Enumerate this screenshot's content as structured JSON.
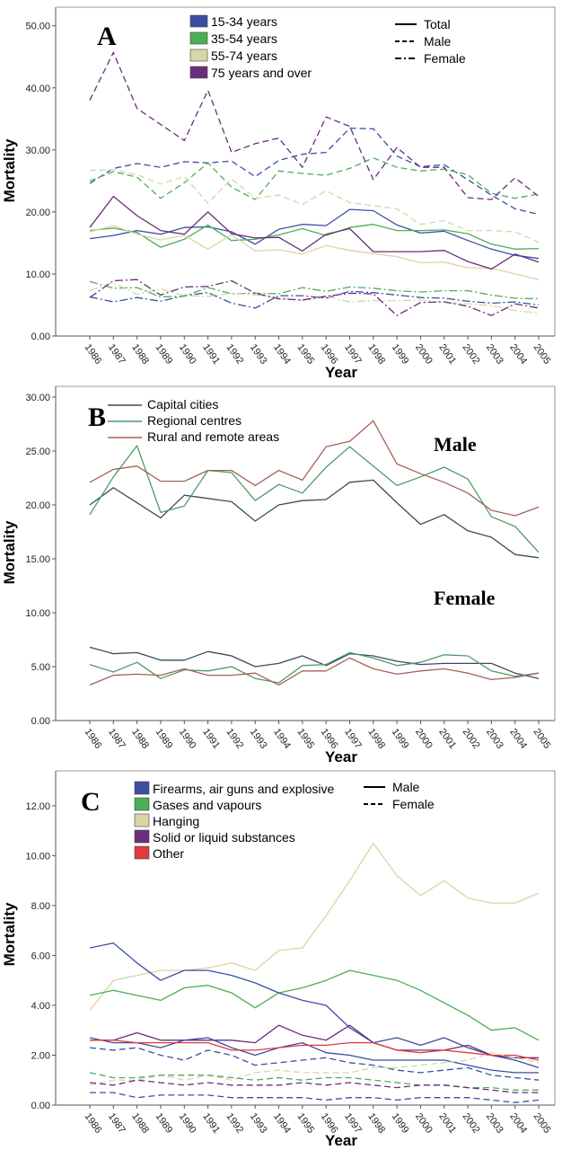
{
  "chart_data": [
    {
      "type": "line",
      "panel": "A",
      "xlabel": "Year",
      "ylabel": "Mortality",
      "x": [
        1986,
        1987,
        1988,
        1989,
        1990,
        1991,
        1992,
        1993,
        1994,
        1995,
        1996,
        1997,
        1998,
        1999,
        2000,
        2001,
        2002,
        2003,
        2004,
        2005
      ],
      "ylim": [
        0,
        53
      ],
      "yticks": [
        "0.00",
        "10.00",
        "20.00",
        "30.00",
        "40.00",
        "50.00"
      ],
      "yticks_values": [
        0,
        10,
        20,
        30,
        40,
        50
      ],
      "legend_colors": [
        {
          "label": "15-34 years",
          "color": "#3b4fa0"
        },
        {
          "label": "35-54 years",
          "color": "#4cae57"
        },
        {
          "label": "55-74 years",
          "color": "#d8d5a7"
        },
        {
          "label": "75 years and over",
          "color": "#6c2d7a"
        }
      ],
      "legend_styles": [
        {
          "label": "Total",
          "dash": "solid"
        },
        {
          "label": "Male",
          "dash": "dashed"
        },
        {
          "label": "Female",
          "dash": "dashdot"
        }
      ],
      "series": [
        {
          "color": "#3b4fa0",
          "dash": "solid",
          "values": [
            15.7,
            16.2,
            17.0,
            16.4,
            17.5,
            17.6,
            16.8,
            14.8,
            17.2,
            18.0,
            17.8,
            20.4,
            20.2,
            17.9,
            16.6,
            16.9,
            15.4,
            14.0,
            13.0,
            12.5
          ]
        },
        {
          "color": "#4cae57",
          "dash": "solid",
          "values": [
            17.0,
            17.4,
            16.7,
            14.3,
            15.6,
            17.9,
            15.4,
            15.6,
            16.3,
            17.3,
            16.2,
            17.5,
            18.0,
            17.0,
            17.0,
            17.1,
            16.5,
            14.8,
            14.0,
            14.1
          ]
        },
        {
          "color": "#d8d5a7",
          "dash": "solid",
          "values": [
            16.8,
            17.8,
            16.4,
            15.5,
            16.2,
            14.0,
            16.3,
            13.7,
            13.9,
            13.2,
            14.6,
            13.8,
            13.3,
            12.8,
            11.8,
            11.9,
            11.0,
            10.9,
            10.0,
            9.1
          ]
        },
        {
          "color": "#6c2d7a",
          "dash": "solid",
          "values": [
            17.5,
            22.5,
            19.4,
            17.0,
            16.4,
            20.0,
            16.5,
            15.8,
            15.9,
            13.7,
            16.4,
            17.3,
            13.6,
            13.6,
            13.6,
            13.8,
            12.0,
            10.8,
            13.2,
            11.9
          ]
        },
        {
          "color": "#3b4fa0",
          "dash": "dashed",
          "values": [
            24.6,
            27.0,
            27.8,
            27.2,
            28.1,
            27.9,
            28.2,
            25.7,
            28.3,
            29.3,
            29.6,
            33.5,
            33.4,
            29.0,
            27.3,
            27.6,
            25.2,
            22.7,
            20.5,
            19.6
          ]
        },
        {
          "color": "#4cae57",
          "dash": "dashed",
          "values": [
            25.0,
            26.5,
            25.6,
            22.2,
            24.7,
            27.9,
            24.0,
            22.0,
            26.6,
            26.2,
            25.9,
            27.0,
            28.7,
            27.2,
            26.6,
            26.9,
            26.0,
            23.0,
            22.2,
            22.9
          ]
        },
        {
          "color": "#d8d5a7",
          "dash": "dashed",
          "values": [
            26.7,
            26.8,
            26.0,
            24.5,
            25.7,
            21.4,
            25.3,
            22.2,
            22.7,
            21.2,
            23.4,
            21.5,
            21.0,
            20.5,
            18.0,
            18.6,
            17.0,
            17.0,
            16.8,
            15.1
          ]
        },
        {
          "color": "#6c2d7a",
          "dash": "dashed",
          "values": [
            38.0,
            45.7,
            36.7,
            34.1,
            31.5,
            39.6,
            29.6,
            31.0,
            31.9,
            27.2,
            35.3,
            33.8,
            25.2,
            30.4,
            27.2,
            27.2,
            22.3,
            22.0,
            25.5,
            22.5
          ]
        },
        {
          "color": "#3b4fa0",
          "dash": "dashdot",
          "values": [
            6.3,
            5.5,
            6.2,
            5.6,
            6.5,
            7.0,
            5.3,
            4.5,
            6.5,
            6.5,
            6.1,
            7.2,
            7.0,
            6.6,
            6.2,
            6.1,
            5.6,
            5.3,
            5.5,
            5.0
          ]
        },
        {
          "color": "#4cae57",
          "dash": "dashdot",
          "values": [
            8.8,
            7.7,
            7.8,
            6.3,
            6.4,
            7.8,
            6.8,
            6.9,
            6.8,
            7.8,
            7.2,
            7.9,
            7.7,
            7.3,
            7.1,
            7.3,
            7.3,
            6.6,
            6.1,
            6.0
          ]
        },
        {
          "color": "#d8d5a7",
          "dash": "dashdot",
          "values": [
            7.3,
            8.6,
            6.7,
            7.6,
            6.5,
            6.4,
            6.9,
            6.6,
            6.2,
            5.7,
            6.4,
            5.5,
            5.7,
            5.7,
            5.8,
            5.4,
            5.2,
            4.9,
            4.1,
            3.7
          ]
        },
        {
          "color": "#6c2d7a",
          "dash": "dashdot",
          "values": [
            6.2,
            8.9,
            9.1,
            6.6,
            7.9,
            8.0,
            8.9,
            6.9,
            6.0,
            5.8,
            6.4,
            6.9,
            6.8,
            3.3,
            5.4,
            5.5,
            4.8,
            3.3,
            5.2,
            4.5
          ]
        }
      ]
    },
    {
      "type": "line",
      "panel": "B",
      "xlabel": "Year",
      "ylabel": "Mortality",
      "x": [
        1986,
        1987,
        1988,
        1989,
        1990,
        1991,
        1992,
        1993,
        1994,
        1995,
        1996,
        1997,
        1998,
        1999,
        2000,
        2001,
        2002,
        2003,
        2004,
        2005
      ],
      "ylim": [
        0,
        31
      ],
      "yticks": [
        "0.00",
        "5.00",
        "10.00",
        "15.00",
        "20.00",
        "25.00",
        "30.00"
      ],
      "yticks_values": [
        0,
        5,
        10,
        15,
        20,
        25,
        30
      ],
      "annotations": [
        "Male",
        "Female"
      ],
      "legend": [
        {
          "label": "Capital cities",
          "color": "#3d4b5e"
        },
        {
          "label": "Regional centres",
          "color": "#4f9a6d"
        },
        {
          "label": "Rural and remote areas",
          "color": "#a5625a"
        }
      ],
      "series": [
        {
          "color": "#3d4b5e",
          "values": [
            20.0,
            21.6,
            20.2,
            18.8,
            20.9,
            20.6,
            20.3,
            18.5,
            20.0,
            20.4,
            20.5,
            22.1,
            22.3,
            20.2,
            18.2,
            19.1,
            17.6,
            17.0,
            15.4,
            15.1
          ]
        },
        {
          "color": "#4f9a6d",
          "values": [
            19.1,
            22.6,
            25.5,
            19.3,
            19.9,
            23.2,
            23.0,
            20.4,
            21.9,
            21.1,
            23.5,
            25.4,
            23.6,
            21.8,
            22.6,
            23.5,
            22.4,
            18.9,
            18.0,
            15.6
          ]
        },
        {
          "color": "#a5625a",
          "values": [
            22.1,
            23.3,
            23.6,
            22.2,
            22.2,
            23.2,
            23.2,
            21.8,
            23.2,
            22.3,
            25.4,
            25.9,
            27.8,
            23.8,
            22.9,
            22.1,
            21.1,
            19.5,
            19.0,
            19.8
          ]
        },
        {
          "color": "#3d4b5e",
          "values": [
            6.8,
            6.2,
            6.3,
            5.6,
            5.6,
            6.4,
            6.0,
            5.0,
            5.3,
            6.0,
            5.1,
            6.2,
            6.0,
            5.5,
            5.2,
            5.3,
            5.3,
            5.3,
            4.4,
            3.9
          ]
        },
        {
          "color": "#4f9a6d",
          "values": [
            5.2,
            4.5,
            5.4,
            3.9,
            4.7,
            4.6,
            5.0,
            3.9,
            3.5,
            5.1,
            5.2,
            6.3,
            5.8,
            5.1,
            5.4,
            6.1,
            6.0,
            4.6,
            4.1,
            4.4
          ]
        },
        {
          "color": "#a5625a",
          "values": [
            3.3,
            4.2,
            4.3,
            4.2,
            4.8,
            4.2,
            4.2,
            4.4,
            3.3,
            4.6,
            4.6,
            5.8,
            4.8,
            4.3,
            4.6,
            4.8,
            4.4,
            3.8,
            4.0,
            4.4
          ]
        }
      ]
    },
    {
      "type": "line",
      "panel": "C",
      "xlabel": "Year",
      "ylabel": "Mortality",
      "x": [
        1986,
        1987,
        1988,
        1989,
        1990,
        1991,
        1992,
        1993,
        1994,
        1995,
        1996,
        1997,
        1998,
        1999,
        2000,
        2001,
        2002,
        2003,
        2004,
        2005
      ],
      "ylim": [
        0,
        13.4
      ],
      "yticks": [
        "0.00",
        "2.00",
        "4.00",
        "6.00",
        "8.00",
        "10.00",
        "12.00"
      ],
      "yticks_values": [
        0,
        2,
        4,
        6,
        8,
        10,
        12
      ],
      "legend_colors": [
        {
          "label": "Firearms, air guns and explosive",
          "color": "#3b4fa0"
        },
        {
          "label": "Gases and vapours",
          "color": "#4cae57"
        },
        {
          "label": "Hanging",
          "color": "#d8d5a7"
        },
        {
          "label": "Solid or liquid substances",
          "color": "#6c2d7a"
        },
        {
          "label": "Other",
          "color": "#e0393e"
        }
      ],
      "legend_styles": [
        {
          "label": "Male",
          "dash": "solid"
        },
        {
          "label": "Female",
          "dash": "dashed"
        }
      ],
      "series": [
        {
          "color": "#d8d5a7",
          "dash": "solid",
          "values": [
            3.8,
            5.0,
            5.2,
            5.4,
            5.4,
            5.5,
            5.7,
            5.4,
            6.2,
            6.3,
            7.6,
            9.0,
            10.5,
            9.2,
            8.4,
            9.0,
            8.3,
            8.1,
            8.1,
            8.5
          ]
        },
        {
          "color": "#4cae57",
          "dash": "solid",
          "values": [
            4.4,
            4.6,
            4.4,
            4.2,
            4.7,
            4.8,
            4.5,
            3.9,
            4.5,
            4.7,
            5.0,
            5.4,
            5.2,
            5.0,
            4.6,
            4.1,
            3.6,
            3.0,
            3.1,
            2.6
          ]
        },
        {
          "color": "#3b4fa0",
          "dash": "solid",
          "values": [
            6.3,
            6.5,
            5.7,
            5.0,
            5.4,
            5.4,
            5.2,
            4.9,
            4.5,
            4.2,
            4.0,
            3.1,
            2.5,
            2.7,
            2.4,
            2.7,
            2.3,
            2.0,
            1.8,
            1.5
          ]
        },
        {
          "color": "#6c2d7a",
          "dash": "solid",
          "values": [
            2.6,
            2.6,
            2.9,
            2.6,
            2.6,
            2.6,
            2.6,
            2.5,
            3.2,
            2.8,
            2.6,
            3.2,
            2.5,
            2.2,
            2.2,
            2.2,
            2.4,
            2.0,
            1.9,
            1.9
          ]
        },
        {
          "color": "#3b4fa0",
          "dash": "solid",
          "values": [
            2.7,
            2.5,
            2.5,
            2.3,
            2.6,
            2.7,
            2.3,
            2.0,
            2.3,
            2.5,
            2.1,
            2.0,
            1.8,
            1.8,
            1.8,
            1.8,
            1.6,
            1.4,
            1.3,
            1.3
          ]
        },
        {
          "color": "#e0393e",
          "dash": "solid",
          "values": [
            2.6,
            2.6,
            2.5,
            2.5,
            2.5,
            2.5,
            2.2,
            2.2,
            2.3,
            2.4,
            2.4,
            2.5,
            2.5,
            2.2,
            2.1,
            2.2,
            2.1,
            2.0,
            2.0,
            1.8
          ]
        },
        {
          "color": "#3b4fa0",
          "dash": "dashed",
          "values": [
            2.3,
            2.2,
            2.3,
            2.0,
            1.8,
            2.2,
            2.0,
            1.6,
            1.7,
            1.8,
            1.9,
            1.7,
            1.6,
            1.4,
            1.3,
            1.4,
            1.5,
            1.2,
            1.1,
            1.0
          ]
        },
        {
          "color": "#d8d5a7",
          "dash": "dashed",
          "values": [
            0.8,
            1.0,
            1.0,
            1.2,
            1.0,
            1.2,
            1.0,
            1.3,
            1.4,
            1.3,
            1.3,
            1.3,
            1.5,
            1.5,
            1.6,
            1.7,
            1.8,
            2.1,
            1.9,
            1.7
          ]
        },
        {
          "color": "#4cae57",
          "dash": "dashed",
          "values": [
            1.3,
            1.1,
            1.1,
            1.2,
            1.2,
            1.2,
            1.1,
            1.0,
            1.1,
            1.0,
            1.1,
            1.1,
            1.0,
            0.9,
            0.8,
            0.8,
            0.7,
            0.7,
            0.6,
            0.6
          ]
        },
        {
          "color": "#6c2d7a",
          "dash": "dashed",
          "values": [
            0.9,
            0.8,
            1.0,
            0.9,
            0.8,
            0.9,
            0.8,
            0.8,
            0.8,
            0.9,
            0.8,
            0.9,
            0.8,
            0.7,
            0.8,
            0.8,
            0.7,
            0.6,
            0.5,
            0.5
          ]
        },
        {
          "color": "#3b4fa0",
          "dash": "dashed",
          "values": [
            0.5,
            0.5,
            0.3,
            0.4,
            0.4,
            0.4,
            0.3,
            0.3,
            0.3,
            0.3,
            0.2,
            0.3,
            0.3,
            0.2,
            0.3,
            0.3,
            0.3,
            0.2,
            0.1,
            0.2
          ]
        }
      ]
    }
  ]
}
